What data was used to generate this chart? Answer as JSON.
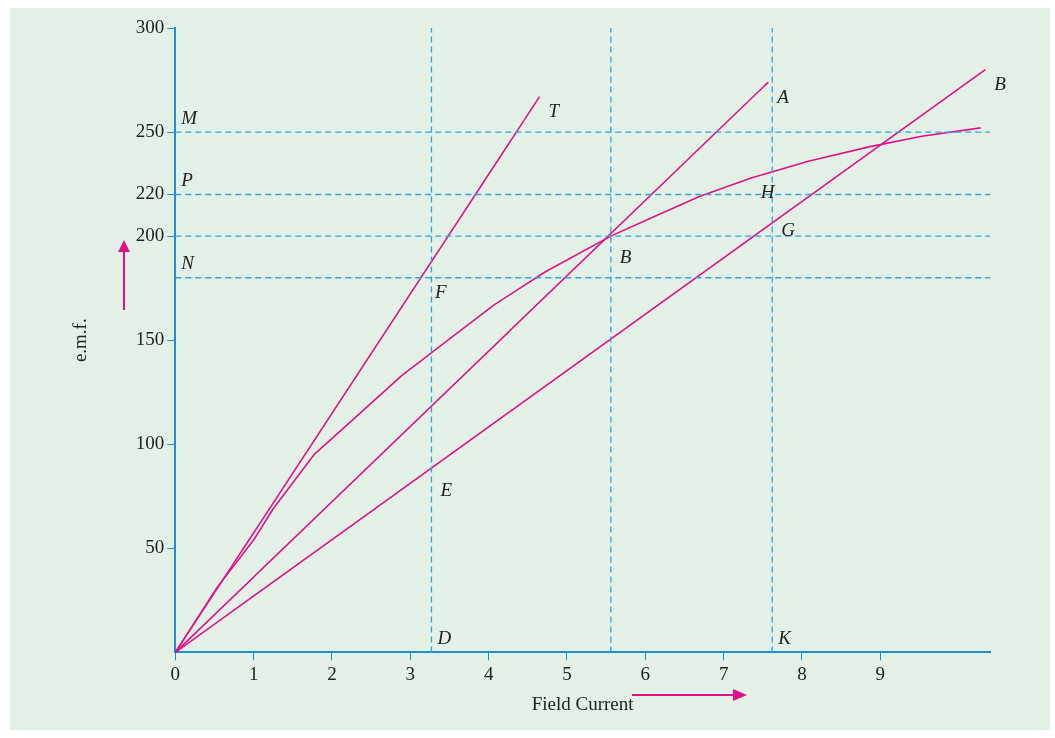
{
  "chart_data": {
    "type": "line",
    "xlabel": "Field Current",
    "ylabel": "e.m.f.",
    "xlim": [
      0,
      10.4
    ],
    "ylim": [
      0,
      300
    ],
    "xticks": [
      0,
      1,
      2,
      3,
      4,
      5,
      6,
      7,
      8,
      9
    ],
    "yticks": [
      50,
      100,
      150,
      200,
      220,
      250,
      300
    ],
    "grid": false,
    "legend": false,
    "marker": "none",
    "line_style": "solid",
    "series": [
      {
        "color": "#e0128a",
        "x": [
          0,
          0.53,
          1.0,
          1.25,
          1.77,
          2.36,
          2.89,
          3.48,
          4.07,
          4.73,
          5.56,
          6.03,
          6.69,
          7.36,
          8.08,
          8.87,
          9.53,
          10.28
        ],
        "values": [
          0,
          31,
          54,
          69,
          95,
          115,
          133,
          150,
          167,
          183,
          200,
          208,
          219,
          228,
          236,
          243,
          248,
          252
        ]
      },
      {
        "color": "#e0128a",
        "x": [
          0,
          4.65
        ],
        "values": [
          0,
          267
        ]
      },
      {
        "color": "#e0128a",
        "x": [
          0,
          7.57
        ],
        "values": [
          0,
          274
        ]
      },
      {
        "color": "#e0128a",
        "x": [
          0,
          10.34
        ],
        "values": [
          0,
          280
        ]
      }
    ],
    "ref_lines": [
      {
        "axis": "y",
        "value": 250,
        "label": "M",
        "color": "#2aa6df",
        "line_style": "dashed"
      },
      {
        "axis": "y",
        "value": 220,
        "label": "P",
        "color": "#2aa6df",
        "line_style": "dashed"
      },
      {
        "axis": "y",
        "value": 200,
        "color": "#2aa6df",
        "line_style": "dashed"
      },
      {
        "axis": "y",
        "value": 180,
        "label": "N",
        "color": "#2aa6df",
        "line_style": "dashed"
      },
      {
        "axis": "x",
        "value": 3.27,
        "label": "D",
        "color": "#2aa6df",
        "line_style": "dashed"
      },
      {
        "axis": "x",
        "value": 5.56,
        "color": "#2aa6df",
        "line_style": "dashed"
      },
      {
        "axis": "x",
        "value": 7.62,
        "label": "K",
        "color": "#2aa6df",
        "line_style": "dashed"
      }
    ],
    "annotations": [
      {
        "text": "T",
        "x": 4.65,
        "y": 267
      },
      {
        "text": "A",
        "x": 7.57,
        "y": 274
      },
      {
        "text": "B",
        "x": 10.34,
        "y": 280
      },
      {
        "text": "F",
        "x": 3.2,
        "y": 180
      },
      {
        "text": "E",
        "x": 3.27,
        "y": 85
      },
      {
        "text": "B",
        "x": 5.56,
        "y": 197
      },
      {
        "text": "H",
        "x": 7.36,
        "y": 228
      },
      {
        "text": "G",
        "x": 7.62,
        "y": 210
      }
    ]
  }
}
